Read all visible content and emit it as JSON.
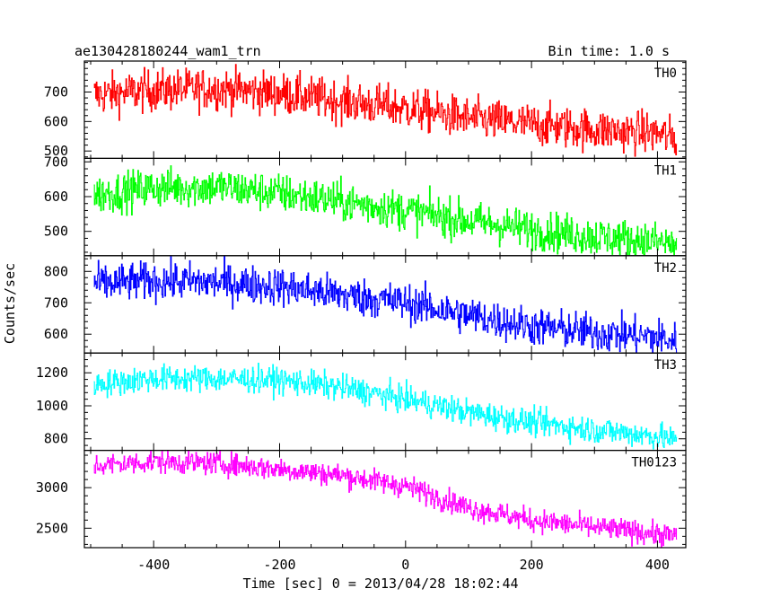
{
  "header": {
    "title": "ae130428180244_wam1_trn",
    "bin_time": "Bin time: 1.0 s"
  },
  "chart_data": {
    "type": "line",
    "xlabel": "Time [sec] 0 = 2013/04/28 18:02:44",
    "ylabel": "Counts/sec",
    "xlim": [
      -510,
      445
    ],
    "x_ticks": [
      -400,
      -200,
      0,
      200,
      400
    ],
    "x_range_data": [
      -495,
      430
    ],
    "series": [
      {
        "name": "TH0",
        "color": "#ff0000",
        "ylim": [
          475,
          805
        ],
        "y_ticks": [
          500,
          600,
          700
        ],
        "trend": [
          [
            -495,
            690
          ],
          [
            -400,
            705
          ],
          [
            -300,
            712
          ],
          [
            -200,
            695
          ],
          [
            -100,
            668
          ],
          [
            0,
            645
          ],
          [
            100,
            610
          ],
          [
            200,
            590
          ],
          [
            300,
            572
          ],
          [
            400,
            560
          ],
          [
            430,
            540
          ]
        ],
        "noise": 35
      },
      {
        "name": "TH1",
        "color": "#00ff00",
        "ylim": [
          430,
          710
        ],
        "y_ticks": [
          500,
          600,
          700
        ],
        "trend": [
          [
            -495,
            605
          ],
          [
            -400,
            625
          ],
          [
            -300,
            628
          ],
          [
            -200,
            610
          ],
          [
            -100,
            585
          ],
          [
            0,
            560
          ],
          [
            100,
            530
          ],
          [
            200,
            505
          ],
          [
            300,
            485
          ],
          [
            400,
            470
          ],
          [
            430,
            460
          ]
        ],
        "noise": 28
      },
      {
        "name": "TH2",
        "color": "#0000ff",
        "ylim": [
          540,
          850
        ],
        "y_ticks": [
          600,
          700,
          800
        ],
        "trend": [
          [
            -495,
            760
          ],
          [
            -400,
            770
          ],
          [
            -300,
            765
          ],
          [
            -200,
            752
          ],
          [
            -100,
            725
          ],
          [
            0,
            700
          ],
          [
            100,
            660
          ],
          [
            200,
            625
          ],
          [
            300,
            605
          ],
          [
            400,
            590
          ],
          [
            430,
            575
          ]
        ],
        "noise": 30
      },
      {
        "name": "TH3",
        "color": "#00ffff",
        "ylim": [
          730,
          1320
        ],
        "y_ticks": [
          800,
          1000,
          1200
        ],
        "trend": [
          [
            -495,
            1130
          ],
          [
            -400,
            1165
          ],
          [
            -300,
            1165
          ],
          [
            -200,
            1155
          ],
          [
            -100,
            1110
          ],
          [
            0,
            1040
          ],
          [
            100,
            960
          ],
          [
            200,
            900
          ],
          [
            300,
            855
          ],
          [
            400,
            815
          ],
          [
            430,
            790
          ]
        ],
        "noise": 40
      },
      {
        "name": "TH0123",
        "color": "#ff00ff",
        "ylim": [
          2260,
          3460
        ],
        "y_ticks": [
          2500,
          3000
        ],
        "trend": [
          [
            -495,
            3270
          ],
          [
            -400,
            3320
          ],
          [
            -300,
            3300
          ],
          [
            -200,
            3230
          ],
          [
            -100,
            3150
          ],
          [
            0,
            3020
          ],
          [
            100,
            2750
          ],
          [
            200,
            2600
          ],
          [
            300,
            2510
          ],
          [
            400,
            2430
          ],
          [
            430,
            2400
          ]
        ],
        "noise": 70
      }
    ]
  }
}
